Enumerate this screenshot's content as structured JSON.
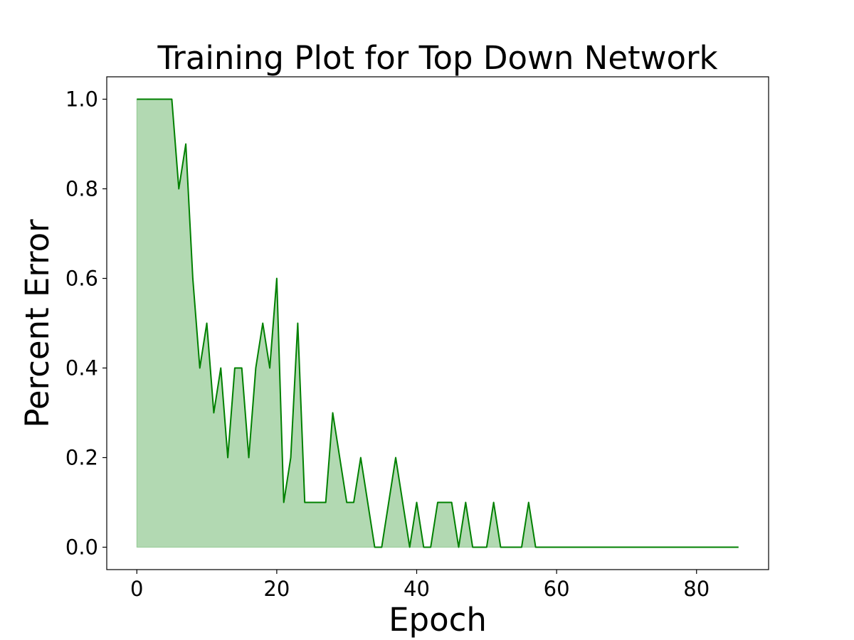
{
  "chart_data": {
    "type": "area",
    "title": "Training Plot for Top Down Network",
    "xlabel": "Epoch",
    "ylabel": "Percent Error",
    "xlim": [
      -4.3,
      90.3
    ],
    "ylim": [
      -0.05,
      1.05
    ],
    "xticks": [
      0,
      20,
      40,
      60,
      80
    ],
    "yticks": [
      0.0,
      0.2,
      0.4,
      0.6,
      0.8,
      1.0
    ],
    "xtick_labels": [
      "0",
      "20",
      "40",
      "60",
      "80"
    ],
    "ytick_labels": [
      "0.0",
      "0.2",
      "0.4",
      "0.6",
      "0.8",
      "1.0"
    ],
    "grid": false,
    "line_color": "#008000",
    "fill_color": "#008000",
    "fill_opacity": 0.3,
    "series": [
      {
        "x": [
          0,
          1,
          2,
          3,
          4,
          5,
          6,
          7,
          8,
          9,
          10,
          11,
          12,
          13,
          14,
          15,
          16,
          17,
          18,
          19,
          20,
          21,
          22,
          23,
          24,
          25,
          26,
          27,
          28,
          29,
          30,
          31,
          32,
          33,
          34,
          35,
          36,
          37,
          38,
          39,
          40,
          41,
          42,
          43,
          44,
          45,
          46,
          47,
          48,
          49,
          50,
          51,
          52,
          53,
          54,
          55,
          56,
          57,
          58,
          59,
          60,
          61,
          62,
          63,
          64,
          65,
          66,
          67,
          68,
          69,
          70,
          71,
          72,
          73,
          74,
          75,
          76,
          77,
          78,
          79,
          80,
          81,
          82,
          83,
          84,
          85,
          86
        ],
        "values": [
          1.0,
          1.0,
          1.0,
          1.0,
          1.0,
          1.0,
          0.8,
          0.9,
          0.6,
          0.4,
          0.5,
          0.3,
          0.4,
          0.2,
          0.4,
          0.4,
          0.2,
          0.4,
          0.5,
          0.4,
          0.6,
          0.1,
          0.2,
          0.5,
          0.1,
          0.1,
          0.1,
          0.1,
          0.3,
          0.2,
          0.1,
          0.1,
          0.2,
          0.1,
          0.0,
          0.0,
          0.1,
          0.2,
          0.1,
          0.0,
          0.1,
          0.0,
          0.0,
          0.1,
          0.1,
          0.1,
          0.0,
          0.1,
          0.0,
          0.0,
          0.0,
          0.1,
          0.0,
          0.0,
          0.0,
          0.0,
          0.1,
          0.0,
          0.0,
          0.0,
          0.0,
          0.0,
          0.0,
          0.0,
          0.0,
          0.0,
          0.0,
          0.0,
          0.0,
          0.0,
          0.0,
          0.0,
          0.0,
          0.0,
          0.0,
          0.0,
          0.0,
          0.0,
          0.0,
          0.0,
          0.0,
          0.0,
          0.0,
          0.0,
          0.0,
          0.0,
          0.0
        ]
      }
    ]
  }
}
